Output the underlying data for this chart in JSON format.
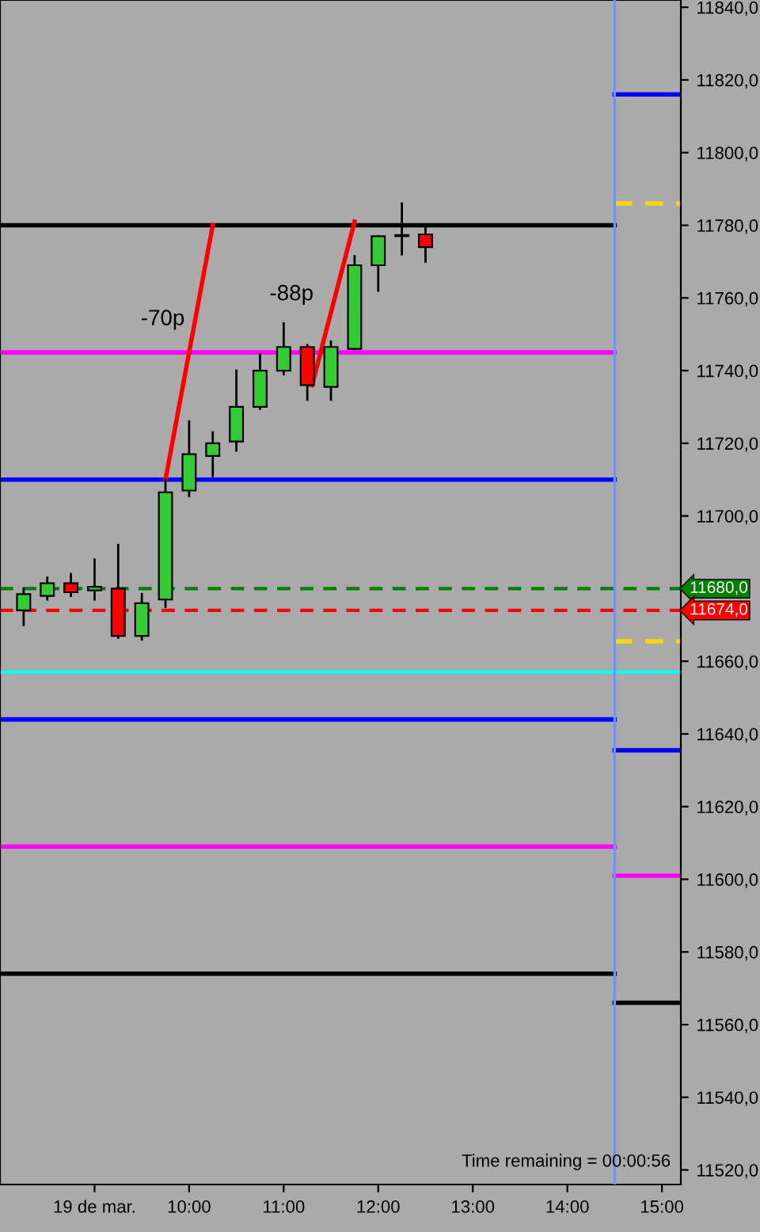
{
  "chart_data": {
    "type": "candlestick",
    "x": [
      8.25,
      8.5,
      8.75,
      9.0,
      9.25,
      9.5,
      9.75,
      10.0,
      10.25,
      10.5,
      10.75,
      11.0,
      11.25,
      11.5,
      11.75,
      12.0,
      12.25,
      12.5
    ],
    "ohlc": [
      [
        11674,
        11680,
        11670,
        11678.5
      ],
      [
        11678,
        11683,
        11677,
        11681.5
      ],
      [
        11681.5,
        11684,
        11678,
        11679
      ],
      [
        11679.5,
        11688,
        11677,
        11680.5
      ],
      [
        11680,
        11692,
        11666.5,
        11667
      ],
      [
        11667,
        11678.5,
        11666,
        11676
      ],
      [
        11677,
        11710,
        11675,
        11706.5
      ],
      [
        11707,
        11726,
        11705.5,
        11717
      ],
      [
        11716.5,
        11723,
        11711,
        11720
      ],
      [
        11720.5,
        11740,
        11718,
        11730
      ],
      [
        11730,
        11744.5,
        11729.5,
        11740
      ],
      [
        11740,
        11753,
        11739,
        11746.5
      ],
      [
        11746.5,
        11747,
        11732,
        11736
      ],
      [
        11735.5,
        11748,
        11732,
        11746.5
      ],
      [
        11746,
        11771.5,
        11746,
        11769
      ],
      [
        11769,
        11777,
        11762,
        11777
      ],
      [
        11777,
        11786,
        11772,
        11777
      ],
      [
        11777.5,
        11779.5,
        11770,
        11774
      ]
    ],
    "colors": [
      "#33cc33",
      "#33cc33",
      "#ff0000",
      "#33cc33",
      "#ff0000",
      "#33cc33",
      "#33cc33",
      "#33cc33",
      "#33cc33",
      "#33cc33",
      "#33cc33",
      "#33cc33",
      "#ff0000",
      "#33cc33",
      "#33cc33",
      "#33cc33",
      "#000000",
      "#ff0000"
    ],
    "series": [
      {
        "type": "line",
        "x": [
          8.0,
          14.5
        ],
        "values": [
          11780,
          11780
        ],
        "color": "#000000"
      },
      {
        "type": "line",
        "x": [
          8.0,
          14.5
        ],
        "values": [
          11745,
          11745
        ],
        "color": "#ff00ff"
      },
      {
        "type": "line",
        "x": [
          8.0,
          14.5
        ],
        "values": [
          11710,
          11710
        ],
        "color": "#0000ff"
      },
      {
        "type": "line",
        "x": [
          8.0,
          14.5
        ],
        "values": [
          11644,
          11644
        ],
        "color": "#0000ff"
      },
      {
        "type": "line",
        "x": [
          8.0,
          14.5
        ],
        "values": [
          11609,
          11609
        ],
        "color": "#ff00ff"
      },
      {
        "type": "line",
        "x": [
          8.0,
          14.5
        ],
        "values": [
          11574,
          11574
        ],
        "color": "#000000"
      },
      {
        "type": "line",
        "x": [
          14.5,
          15.2
        ],
        "values": [
          11816,
          11816
        ],
        "color": "#0000ff"
      },
      {
        "type": "line",
        "x": [
          14.5,
          15.2
        ],
        "values": [
          11786,
          11786
        ],
        "color": "#ffd700",
        "line_style": "dashed"
      },
      {
        "type": "line",
        "x": [
          14.5,
          15.2
        ],
        "values": [
          11665.5,
          11665.5
        ],
        "color": "#ffd700",
        "line_style": "dashed"
      },
      {
        "type": "line",
        "x": [
          14.5,
          15.2
        ],
        "values": [
          11635.5,
          11635.5
        ],
        "color": "#0000ff"
      },
      {
        "type": "line",
        "x": [
          14.5,
          15.2
        ],
        "values": [
          11601,
          11601
        ],
        "color": "#ff00ff"
      },
      {
        "type": "line",
        "x": [
          14.5,
          15.2
        ],
        "values": [
          11566,
          11566
        ],
        "color": "#000000"
      },
      {
        "type": "line",
        "x": [
          9.75,
          10.25
        ],
        "values": [
          11710,
          11780
        ],
        "color": "#ff0000"
      },
      {
        "type": "line",
        "x": [
          11.3,
          11.75
        ],
        "values": [
          11736,
          11781
        ],
        "color": "#ff0000"
      }
    ],
    "ref_lines": [
      {
        "axis": "y",
        "value": 11680,
        "label": "11680,0",
        "color": "#008000",
        "line_style": "dashed"
      },
      {
        "axis": "y",
        "value": 11674,
        "label": "11674,0",
        "color": "#ff0000",
        "line_style": "dashed"
      },
      {
        "axis": "y",
        "value": 11657,
        "label": null,
        "color": "#00ffff",
        "line_style": "solid"
      },
      {
        "axis": "x",
        "value": 14.5,
        "label": null,
        "color": "#6699ff",
        "line_style": "solid"
      }
    ],
    "annotations": [
      "-70p",
      "-88p",
      "Time remaining = 00:00:56"
    ],
    "xlim": [
      8.0,
      15.2
    ],
    "ylim": [
      11516,
      11842
    ],
    "xticks": [
      {
        "value": 9,
        "label": "19 de mar."
      },
      {
        "value": 10,
        "label": "10:00"
      },
      {
        "value": 11,
        "label": "11:00"
      },
      {
        "value": 12,
        "label": "12:00"
      },
      {
        "value": 13,
        "label": "13:00"
      },
      {
        "value": 14,
        "label": "14:00"
      },
      {
        "value": 15,
        "label": "15:00"
      }
    ],
    "yticks": [
      {
        "value": 11520,
        "label": "11520,0"
      },
      {
        "value": 11540,
        "label": "11540,0"
      },
      {
        "value": 11560,
        "label": "11560,0"
      },
      {
        "value": 11580,
        "label": "11580,0"
      },
      {
        "value": 11600,
        "label": "11600,0"
      },
      {
        "value": 11620,
        "label": "11620,0"
      },
      {
        "value": 11640,
        "label": "11640,0"
      },
      {
        "value": 11660,
        "label": "11660,0"
      },
      {
        "value": 11680,
        "label": null
      },
      {
        "value": 11700,
        "label": "11700,0"
      },
      {
        "value": 11720,
        "label": "11720,0"
      },
      {
        "value": 11740,
        "label": "11740,0"
      },
      {
        "value": 11760,
        "label": "11760,0"
      },
      {
        "value": 11780,
        "label": "11780,0"
      },
      {
        "value": 11800,
        "label": "11800,0"
      },
      {
        "value": 11820,
        "label": "11820,0"
      },
      {
        "value": 11840,
        "label": "11840,0"
      }
    ],
    "grid": false,
    "legend": false
  }
}
